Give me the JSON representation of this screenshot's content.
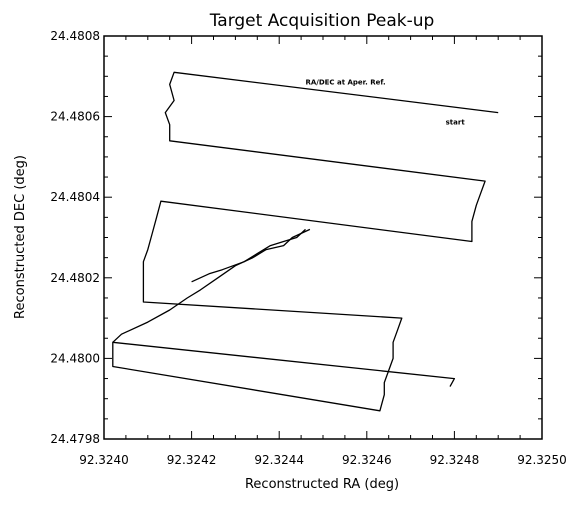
{
  "chart_data": {
    "type": "line",
    "title": "Target Acquisition Peak-up",
    "xlabel": "Reconstructed RA (deg)",
    "ylabel": "Reconstructed DEC (deg)",
    "xlim": [
      92.324,
      92.325
    ],
    "ylim": [
      24.4798,
      24.4808
    ],
    "x_ticks": [
      "92.3240",
      "92.3242",
      "92.3244",
      "92.3246",
      "92.3248",
      "92.3250"
    ],
    "y_ticks": [
      "24.4798",
      "24.4800",
      "24.4802",
      "24.4804",
      "24.4806",
      "24.4808"
    ],
    "grid": false,
    "annotations": [
      {
        "text": "RA/DEC at Aper. Ref.",
        "x": 92.32446,
        "y": 24.48068
      },
      {
        "text": "start",
        "x": 92.32478,
        "y": 24.48058
      }
    ],
    "series": [
      {
        "x": [
          92.3249,
          92.32416,
          92.32415,
          92.32416,
          92.32414,
          92.32415,
          92.32415,
          92.32487,
          92.32486,
          92.32485,
          92.32484,
          92.32484,
          92.32413,
          92.32412,
          92.32411,
          92.3241,
          92.32409,
          92.32409,
          92.32409,
          92.32409,
          92.32468,
          92.32467,
          92.32466,
          92.32466,
          92.32465,
          92.32464,
          92.32464,
          92.32463,
          92.32402,
          92.32402,
          92.3248,
          92.32479
        ],
        "y": [
          24.48061,
          24.48071,
          24.48068,
          24.48064,
          24.48061,
          24.48058,
          24.48054,
          24.48044,
          24.48041,
          24.48038,
          24.48034,
          24.48029,
          24.48039,
          24.48035,
          24.48031,
          24.48027,
          24.48024,
          24.48021,
          24.48018,
          24.48014,
          24.4801,
          24.48007,
          24.48004,
          24.48,
          24.47997,
          24.47994,
          24.47991,
          24.47987,
          24.47998,
          24.48004,
          24.47995,
          24.47993
        ]
      },
      {
        "x": [
          92.32402,
          92.32404,
          92.3241,
          92.32415,
          92.32419,
          92.32422,
          92.32426,
          92.3243,
          92.32434,
          92.32437,
          92.32441,
          92.32443,
          92.32447
        ],
        "y": [
          24.48004,
          24.48006,
          24.48009,
          24.48012,
          24.48015,
          24.48017,
          24.4802,
          24.48023,
          24.48025,
          24.48027,
          24.48028,
          24.4803,
          24.48032
        ]
      },
      {
        "x": [
          92.3242,
          92.32424,
          92.32427,
          92.32432,
          92.32435,
          92.32438,
          92.32441,
          92.32444,
          92.32446
        ],
        "y": [
          24.48019,
          24.48021,
          24.48022,
          24.48024,
          24.48026,
          24.48028,
          24.48029,
          24.4803,
          24.48032
        ]
      }
    ]
  }
}
